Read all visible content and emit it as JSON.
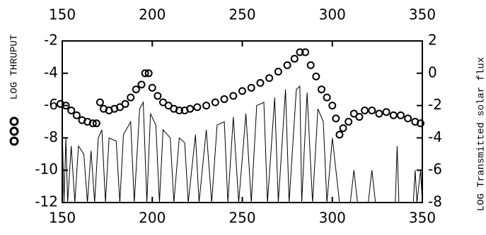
{
  "chart_data": {
    "type": "line",
    "y_label": "LOG THRUPUT",
    "y2_label": "LOG Transmitted solar flux",
    "xlim": [
      150,
      350
    ],
    "xticks": [
      150,
      200,
      250,
      300,
      350
    ],
    "ylim": [
      -12,
      -2
    ],
    "yticks": [
      -2,
      -4,
      -6,
      -8,
      -10,
      -12
    ],
    "y2lim": [
      -8,
      2
    ],
    "y2ticks": [
      2,
      0,
      -2,
      -4,
      -6,
      -8
    ],
    "series": [
      {
        "style": "circles",
        "color": "#000000",
        "x": [
          149,
          152,
          155,
          158,
          161,
          164,
          167,
          169,
          171,
          173,
          176,
          179,
          182,
          185,
          188,
          191,
          194,
          196,
          198,
          200,
          203,
          206,
          209,
          212,
          215,
          218,
          221,
          225,
          230,
          235,
          240,
          245,
          250,
          255,
          260,
          265,
          270,
          275,
          279,
          282,
          285,
          288,
          291,
          294,
          297,
          300,
          302,
          304,
          306,
          309,
          312,
          315,
          318,
          322,
          326,
          330,
          334,
          338,
          342,
          346,
          349
        ],
        "values": [
          -5.9,
          -6.0,
          -6.3,
          -6.6,
          -6.9,
          -7.0,
          -7.1,
          -7.1,
          -5.8,
          -6.2,
          -6.3,
          -6.2,
          -6.1,
          -5.9,
          -5.5,
          -5.0,
          -4.7,
          -4.0,
          -4.0,
          -4.9,
          -5.4,
          -5.8,
          -6.0,
          -6.2,
          -6.3,
          -6.3,
          -6.2,
          -6.1,
          -6.0,
          -5.8,
          -5.6,
          -5.4,
          -5.1,
          -4.9,
          -4.6,
          -4.3,
          -3.9,
          -3.5,
          -3.1,
          -2.7,
          -2.7,
          -3.5,
          -4.2,
          -5.0,
          -5.5,
          -6.0,
          -6.8,
          -7.8,
          -7.4,
          -7.0,
          -6.5,
          -6.7,
          -6.3,
          -6.3,
          -6.5,
          -6.4,
          -6.6,
          -6.6,
          -6.8,
          -7.0,
          -7.1
        ]
      },
      {
        "style": "line",
        "axis": "y2",
        "color": "#000000",
        "x": [
          150,
          151,
          152,
          153,
          155,
          157,
          159,
          162,
          164,
          166,
          168,
          170,
          172,
          174,
          176,
          180,
          182,
          184,
          188,
          190,
          193,
          195,
          197,
          199,
          202,
          204,
          206,
          210,
          212,
          215,
          218,
          220,
          224,
          226,
          230,
          233,
          236,
          240,
          242,
          245,
          248,
          252,
          255,
          258,
          262,
          264,
          268,
          270,
          274,
          276,
          280,
          282,
          283,
          286,
          289,
          292,
          295,
          297,
          300,
          304,
          310,
          312,
          314,
          320,
          322,
          324,
          335,
          336,
          337,
          345,
          346,
          347,
          349,
          350
        ],
        "values": [
          -3.5,
          -8,
          -4,
          -8,
          -4.5,
          -8,
          -4.5,
          -5,
          -8,
          -4.8,
          -8,
          -4,
          -3.5,
          -8,
          -4,
          -4.2,
          -8,
          -3.8,
          -3,
          -8,
          -2.2,
          -1.8,
          -8,
          -2.5,
          -3.2,
          -8,
          -3.5,
          -4,
          -8,
          -4,
          -4.3,
          -8,
          -3.8,
          -8,
          -3.5,
          -8,
          -3.2,
          -3,
          -8,
          -2.7,
          -8,
          -2.5,
          -8,
          -2,
          -1.8,
          -8,
          -1.5,
          -8,
          -1,
          -8,
          -1,
          -0.8,
          -8,
          -1.2,
          -8,
          -2.2,
          -3,
          -8,
          -4,
          -8,
          -8,
          -6,
          -8,
          -8,
          -6,
          -8,
          -8,
          -4.5,
          -8,
          -8,
          -6,
          -8,
          -6,
          -8
        ]
      }
    ]
  }
}
